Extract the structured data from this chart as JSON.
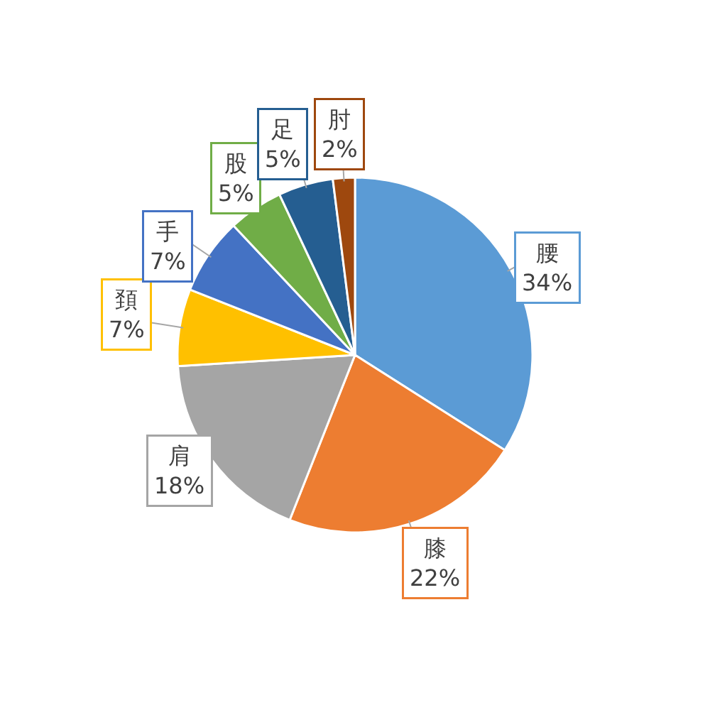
{
  "chart_data": {
    "type": "pie",
    "categories": [
      "腰",
      "膝",
      "肩",
      "頚",
      "手",
      "股",
      "足",
      "肘"
    ],
    "values": [
      34,
      22,
      18,
      7,
      7,
      5,
      5,
      2
    ],
    "value_labels": [
      "34%",
      "22%",
      "18%",
      "7%",
      "7%",
      "5%",
      "5%",
      "2%"
    ],
    "colors": [
      "#5b9bd5",
      "#ed7d31",
      "#a5a5a5",
      "#ffc000",
      "#4472c4",
      "#70ad47",
      "#255e91",
      "#9e480e"
    ],
    "legend": false
  }
}
